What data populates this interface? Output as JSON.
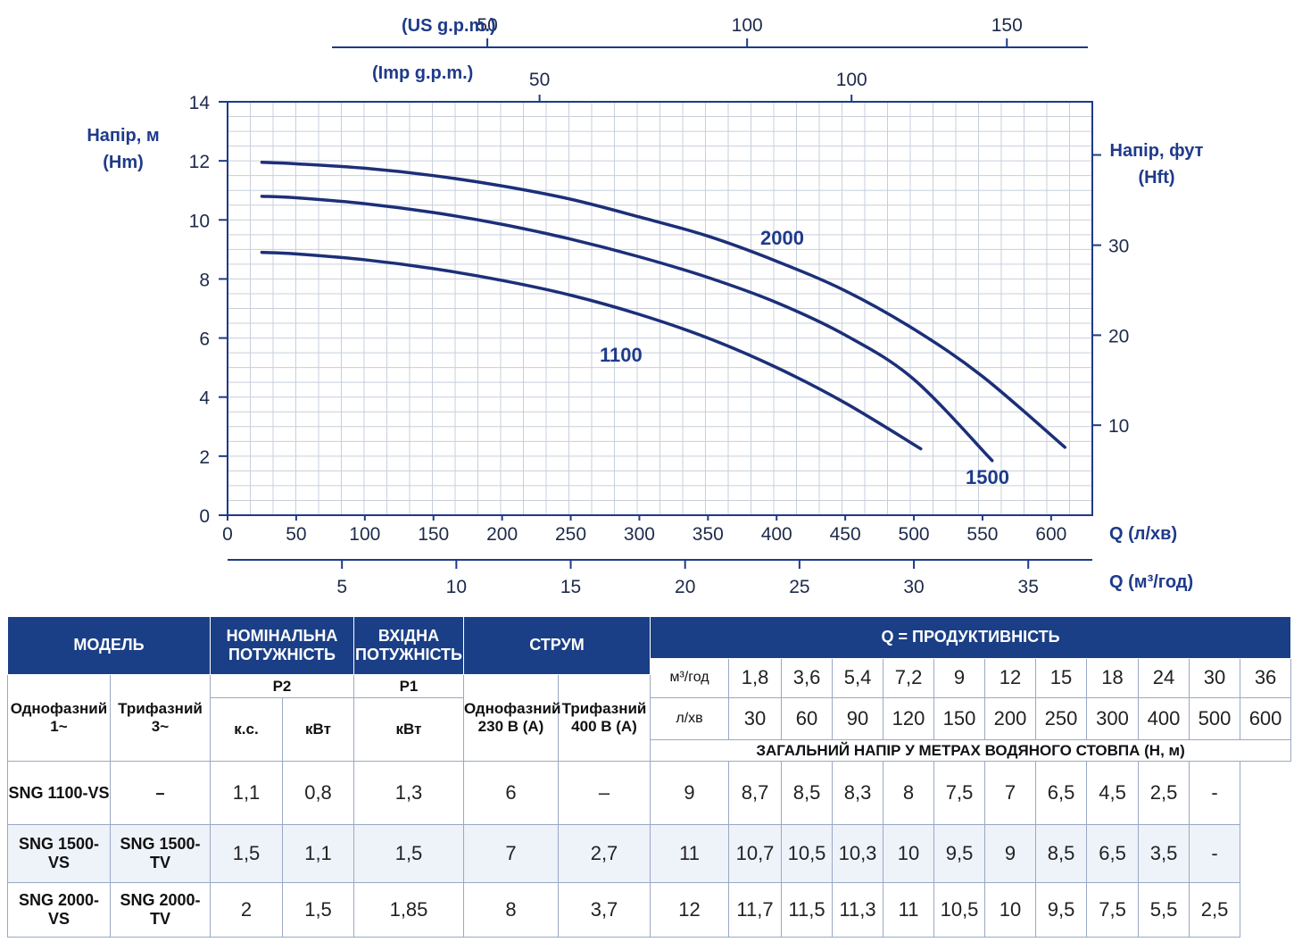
{
  "chart_data": {
    "type": "line",
    "x_bottom_label": "Q (л/хв)",
    "x_second_label": "Q (м³/год)",
    "x_top_us_label": "(US g.p.m.)",
    "x_top_imp_label": "(Imp g.p.m.)",
    "y_left_label_1": "Напір, м",
    "y_left_label_2": "(Hm)",
    "y_right_label_1": "Напір, фут",
    "y_right_label_2": "(Hft)",
    "xlim": [
      0,
      630
    ],
    "ylim": [
      0,
      14
    ],
    "x_ticks": [
      0,
      50,
      100,
      150,
      200,
      250,
      300,
      350,
      400,
      450,
      500,
      550,
      600
    ],
    "y_ticks": [
      0,
      2,
      4,
      6,
      8,
      10,
      12,
      14
    ],
    "m3h_ticks": [
      5,
      10,
      15,
      20,
      25,
      30,
      35
    ],
    "us_gpm_ticks": [
      50,
      100,
      150
    ],
    "imp_gpm_ticks": [
      50,
      100
    ],
    "hft_ticks": [
      10,
      20,
      30
    ],
    "grid": true,
    "series": [
      {
        "name": "1100",
        "x": [
          25,
          50,
          100,
          150,
          200,
          250,
          300,
          350,
          400,
          450,
          505
        ],
        "y": [
          8.9,
          8.85,
          8.65,
          8.35,
          7.95,
          7.45,
          6.8,
          6.0,
          5.0,
          3.8,
          2.25
        ]
      },
      {
        "name": "1500",
        "x": [
          25,
          50,
          100,
          150,
          200,
          250,
          300,
          350,
          400,
          450,
          500,
          557
        ],
        "y": [
          10.8,
          10.75,
          10.55,
          10.25,
          9.85,
          9.35,
          8.75,
          8.05,
          7.2,
          6.1,
          4.6,
          1.85
        ]
      },
      {
        "name": "2000",
        "x": [
          25,
          50,
          100,
          150,
          200,
          250,
          300,
          350,
          400,
          450,
          500,
          550,
          610
        ],
        "y": [
          11.95,
          11.9,
          11.75,
          11.5,
          11.15,
          10.7,
          10.1,
          9.45,
          8.6,
          7.6,
          6.3,
          4.7,
          2.3
        ]
      }
    ]
  },
  "table": {
    "model_header": "МОДЕЛЬ",
    "nominal_header_1": "НОМІНАЛЬНА",
    "nominal_header_2": "ПОТУЖНІСТЬ",
    "input_header_1": "ВХІДНА",
    "input_header_2": "ПОТУЖНІСТЬ",
    "current_header": "СТРУМ",
    "q_header": "Q = ПРОДУКТИВНІСТЬ",
    "single_phase_1": "Однофазний",
    "single_phase_2": "1~",
    "three_phase_1": "Трифазний",
    "three_phase_2": "3~",
    "p2": "P2",
    "p1": "P1",
    "hp": "к.с.",
    "kw": "кВт",
    "kw_p1": "кВт",
    "cur_single_1": "Однофазний",
    "cur_single_2": "230 В (А)",
    "cur_three_1": "Трифазний",
    "cur_three_2": "400 В (А)",
    "unit_m3h": "м³/год",
    "unit_lmin": "л/хв",
    "q_m3h": [
      "1,8",
      "3,6",
      "5,4",
      "7,2",
      "9",
      "12",
      "15",
      "18",
      "24",
      "30",
      "36"
    ],
    "q_lmin": [
      "30",
      "60",
      "90",
      "120",
      "150",
      "200",
      "250",
      "300",
      "400",
      "500",
      "600"
    ],
    "head_caption": "ЗАГАЛЬНИЙ НАПІР У МЕТРАХ ВОДЯНОГО СТОВПА (Н, м)",
    "rows": [
      {
        "single": "SNG 1100-VS",
        "three": "–",
        "hp": "1,1",
        "kw": "0,8",
        "p1": "1,3",
        "i1": "6",
        "i3": "–",
        "h": [
          "9",
          "8,7",
          "8,5",
          "8,3",
          "8",
          "7,5",
          "7",
          "6,5",
          "4,5",
          "2,5",
          "-"
        ]
      },
      {
        "single": "SNG 1500-VS",
        "three": "SNG 1500-TV",
        "hp": "1,5",
        "kw": "1,1",
        "p1": "1,5",
        "i1": "7",
        "i3": "2,7",
        "h": [
          "11",
          "10,7",
          "10,5",
          "10,3",
          "10",
          "9,5",
          "9",
          "8,5",
          "6,5",
          "3,5",
          "-"
        ]
      },
      {
        "single": "SNG 2000-VS",
        "three": "SNG 2000-TV",
        "hp": "2",
        "kw": "1,5",
        "p1": "1,85",
        "i1": "8",
        "i3": "3,7",
        "h": [
          "12",
          "11,7",
          "11,5",
          "11,3",
          "11",
          "10,5",
          "10",
          "9,5",
          "7,5",
          "5,5",
          "2,5"
        ]
      }
    ]
  }
}
